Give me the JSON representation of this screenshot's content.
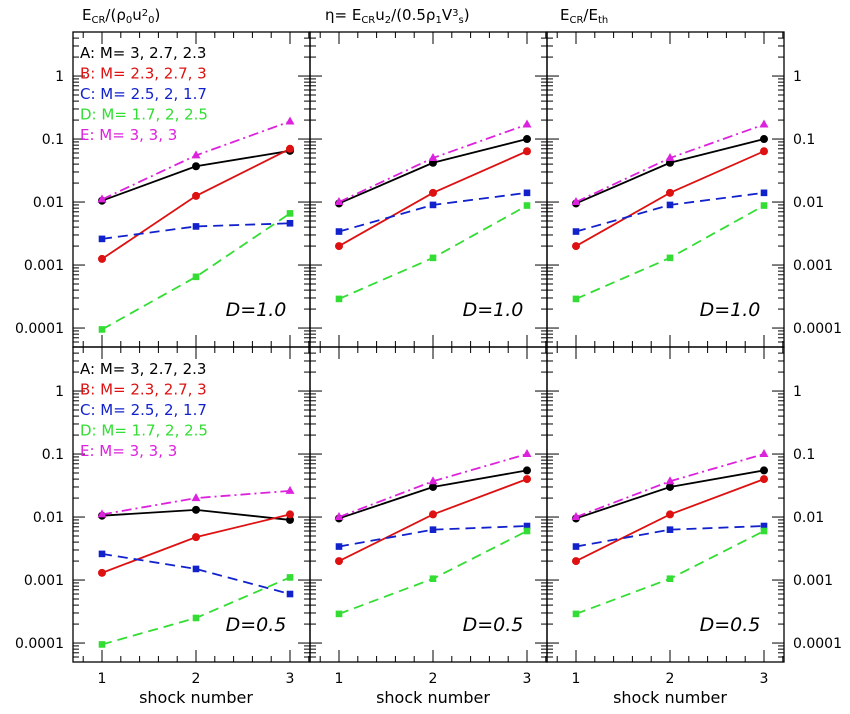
{
  "figure": {
    "column_titles": [
      {
        "main": "E",
        "sub": "CR",
        "rest": "/(ρ",
        "sub2": "0",
        "rest2": "u",
        "sup": "2",
        "sub3": "0",
        "end": ")"
      },
      {
        "main": "η= E",
        "sub": "CR",
        "rest": "u",
        "sub2": "2",
        "rest2": "/(0.5ρ",
        "sub3": "1",
        "rest3": "V",
        "sup": "3",
        "sub4": "s",
        "end": ")"
      },
      {
        "main": "E",
        "sub": "CR",
        "rest": "/E",
        "sub2": "th"
      }
    ],
    "row_labels": [
      "D=1.0",
      "D=0.5"
    ],
    "xlabel": "shock number",
    "legend": [
      {
        "text": "A: M= 3, 2.7, 2.3",
        "color": "#000000"
      },
      {
        "text": "B: M= 2.3, 2.7, 3",
        "color": "#dd1111"
      },
      {
        "text": "C: M= 2.5, 2, 1.7",
        "color": "#1122cc"
      },
      {
        "text": "D: M= 1.7, 2, 2.5",
        "color": "#33dd33"
      },
      {
        "text": "E: M= 3, 3, 3",
        "color": "#dd22dd"
      }
    ],
    "y_tick_labels": [
      "1",
      "0.1",
      "0.01",
      "0.001",
      "0.0001"
    ],
    "x_tick_labels": [
      "1",
      "2",
      "3"
    ]
  },
  "chart_data": [
    {
      "type": "line",
      "panel": "top-left",
      "yscale": "log",
      "ylim": [
        5e-05,
        5
      ],
      "x": [
        1,
        2,
        3
      ],
      "series": [
        {
          "key": "A",
          "color": "#000000",
          "marker": "circle",
          "dash": "solid",
          "values": [
            0.0105,
            0.037,
            0.065
          ]
        },
        {
          "key": "B",
          "color": "#dd1111",
          "marker": "circle",
          "dash": "solid",
          "values": [
            0.00125,
            0.0125,
            0.07
          ]
        },
        {
          "key": "C",
          "color": "#1122cc",
          "marker": "square",
          "dash": "dashed",
          "values": [
            0.0026,
            0.0041,
            0.0046
          ]
        },
        {
          "key": "D",
          "color": "#33dd33",
          "marker": "square",
          "dash": "dashed",
          "values": [
            9.5e-05,
            0.00065,
            0.0066
          ]
        },
        {
          "key": "E",
          "color": "#dd22dd",
          "marker": "triangle",
          "dash": "dashdot",
          "values": [
            0.011,
            0.055,
            0.19
          ]
        }
      ]
    },
    {
      "type": "line",
      "panel": "top-middle",
      "yscale": "log",
      "ylim": [
        5e-05,
        5
      ],
      "x": [
        1,
        2,
        3
      ],
      "series": [
        {
          "key": "A",
          "color": "#000000",
          "marker": "circle",
          "dash": "solid",
          "values": [
            0.0095,
            0.042,
            0.1
          ]
        },
        {
          "key": "B",
          "color": "#dd1111",
          "marker": "circle",
          "dash": "solid",
          "values": [
            0.002,
            0.014,
            0.064
          ]
        },
        {
          "key": "C",
          "color": "#1122cc",
          "marker": "square",
          "dash": "dashed",
          "values": [
            0.0034,
            0.009,
            0.014
          ]
        },
        {
          "key": "D",
          "color": "#33dd33",
          "marker": "square",
          "dash": "dashed",
          "values": [
            0.00029,
            0.0013,
            0.0088
          ]
        },
        {
          "key": "E",
          "color": "#dd22dd",
          "marker": "triangle",
          "dash": "dashdot",
          "values": [
            0.01,
            0.05,
            0.17
          ]
        }
      ]
    },
    {
      "type": "line",
      "panel": "top-right",
      "yscale": "log",
      "ylim": [
        5e-05,
        5
      ],
      "x": [
        1,
        2,
        3
      ],
      "series": [
        {
          "key": "A",
          "color": "#000000",
          "marker": "circle",
          "dash": "solid",
          "values": [
            0.0095,
            0.042,
            0.1
          ]
        },
        {
          "key": "B",
          "color": "#dd1111",
          "marker": "circle",
          "dash": "solid",
          "values": [
            0.002,
            0.014,
            0.064
          ]
        },
        {
          "key": "C",
          "color": "#1122cc",
          "marker": "square",
          "dash": "dashed",
          "values": [
            0.0034,
            0.009,
            0.014
          ]
        },
        {
          "key": "D",
          "color": "#33dd33",
          "marker": "square",
          "dash": "dashed",
          "values": [
            0.00029,
            0.0013,
            0.0088
          ]
        },
        {
          "key": "E",
          "color": "#dd22dd",
          "marker": "triangle",
          "dash": "dashdot",
          "values": [
            0.01,
            0.05,
            0.17
          ]
        }
      ]
    },
    {
      "type": "line",
      "panel": "bottom-left",
      "yscale": "log",
      "ylim": [
        5e-05,
        5
      ],
      "x": [
        1,
        2,
        3
      ],
      "series": [
        {
          "key": "A",
          "color": "#000000",
          "marker": "circle",
          "dash": "solid",
          "values": [
            0.0105,
            0.013,
            0.009
          ]
        },
        {
          "key": "B",
          "color": "#dd1111",
          "marker": "circle",
          "dash": "solid",
          "values": [
            0.0013,
            0.0048,
            0.011
          ]
        },
        {
          "key": "C",
          "color": "#1122cc",
          "marker": "square",
          "dash": "dashed",
          "values": [
            0.0026,
            0.0015,
            0.0006
          ]
        },
        {
          "key": "D",
          "color": "#33dd33",
          "marker": "square",
          "dash": "dashed",
          "values": [
            9.5e-05,
            0.00025,
            0.0011
          ]
        },
        {
          "key": "E",
          "color": "#dd22dd",
          "marker": "triangle",
          "dash": "dashdot",
          "values": [
            0.011,
            0.02,
            0.026
          ]
        }
      ]
    },
    {
      "type": "line",
      "panel": "bottom-middle",
      "yscale": "log",
      "ylim": [
        5e-05,
        5
      ],
      "x": [
        1,
        2,
        3
      ],
      "series": [
        {
          "key": "A",
          "color": "#000000",
          "marker": "circle",
          "dash": "solid",
          "values": [
            0.0095,
            0.03,
            0.055
          ]
        },
        {
          "key": "B",
          "color": "#dd1111",
          "marker": "circle",
          "dash": "solid",
          "values": [
            0.002,
            0.011,
            0.04
          ]
        },
        {
          "key": "C",
          "color": "#1122cc",
          "marker": "square",
          "dash": "dashed",
          "values": [
            0.0034,
            0.0063,
            0.0072
          ]
        },
        {
          "key": "D",
          "color": "#33dd33",
          "marker": "square",
          "dash": "dashed",
          "values": [
            0.00029,
            0.00105,
            0.006
          ]
        },
        {
          "key": "E",
          "color": "#dd22dd",
          "marker": "triangle",
          "dash": "dashdot",
          "values": [
            0.01,
            0.037,
            0.1
          ]
        }
      ]
    },
    {
      "type": "line",
      "panel": "bottom-right",
      "yscale": "log",
      "ylim": [
        5e-05,
        5
      ],
      "x": [
        1,
        2,
        3
      ],
      "series": [
        {
          "key": "A",
          "color": "#000000",
          "marker": "circle",
          "dash": "solid",
          "values": [
            0.0095,
            0.03,
            0.055
          ]
        },
        {
          "key": "B",
          "color": "#dd1111",
          "marker": "circle",
          "dash": "solid",
          "values": [
            0.002,
            0.011,
            0.04
          ]
        },
        {
          "key": "C",
          "color": "#1122cc",
          "marker": "square",
          "dash": "dashed",
          "values": [
            0.0034,
            0.0063,
            0.0072
          ]
        },
        {
          "key": "D",
          "color": "#33dd33",
          "marker": "square",
          "dash": "dashed",
          "values": [
            0.00029,
            0.00105,
            0.006
          ]
        },
        {
          "key": "E",
          "color": "#dd22dd",
          "marker": "triangle",
          "dash": "dashdot",
          "values": [
            0.01,
            0.037,
            0.1
          ]
        }
      ]
    }
  ]
}
